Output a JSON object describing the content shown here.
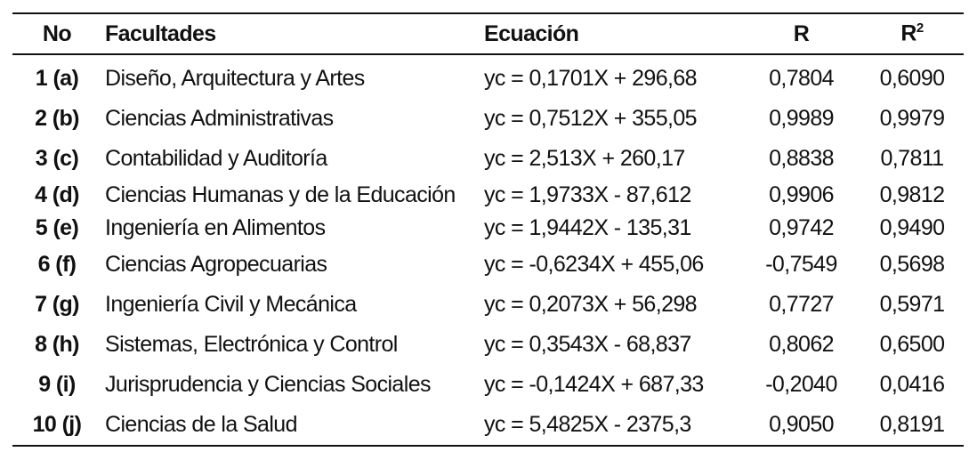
{
  "headers": {
    "no": "No",
    "facultades": "Facultades",
    "ecuacion": "Ecuación",
    "r": "R",
    "r2_base": "R",
    "r2_sup": "2"
  },
  "rows": [
    {
      "no": "1 (a)",
      "facultad": "Diseño, Arquitectura y Artes",
      "ecuacion": "yc = 0,1701X + 296,68",
      "r": "0,7804",
      "r2": "0,6090"
    },
    {
      "no": "2 (b)",
      "facultad": "Ciencias Administrativas",
      "ecuacion": "yc = 0,7512X + 355,05",
      "r": "0,9989",
      "r2": "0,9979"
    },
    {
      "no": "3 (c)",
      "facultad": "Contabilidad y Auditoría",
      "ecuacion": "yc = 2,513X + 260,17",
      "r": "0,8838",
      "r2": "0,7811"
    },
    {
      "no": "4 (d)",
      "facultad": "Ciencias Humanas y de la Educación",
      "ecuacion": "yc = 1,9733X - 87,612",
      "r": "0,9906",
      "r2": "0,9812"
    },
    {
      "no": "5 (e)",
      "facultad": "Ingeniería en Alimentos",
      "ecuacion": "yc = 1,9442X - 135,31",
      "r": "0,9742",
      "r2": "0,9490"
    },
    {
      "no": "6 (f)",
      "facultad": "Ciencias Agropecuarias",
      "ecuacion": "yc = -0,6234X + 455,06",
      "r": "-0,7549",
      "r2": "0,5698"
    },
    {
      "no": "7 (g)",
      "facultad": "Ingeniería Civil y Mecánica",
      "ecuacion": "yc = 0,2073X + 56,298",
      "r": "0,7727",
      "r2": "0,5971"
    },
    {
      "no": "8 (h)",
      "facultad": "Sistemas, Electrónica y Control",
      "ecuacion": "yc = 0,3543X - 68,837",
      "r": "0,8062",
      "r2": "0,6500"
    },
    {
      "no": "9 (i)",
      "facultad": "Jurisprudencia y Ciencias Sociales",
      "ecuacion": "yc = -0,1424X + 687,33",
      "r": "-0,2040",
      "r2": "0,0416"
    },
    {
      "no": "10 (j)",
      "facultad": "Ciencias de la Salud",
      "ecuacion": "yc = 5,4825X - 2375,3",
      "r": "0,9050",
      "r2": "0,8191"
    }
  ]
}
